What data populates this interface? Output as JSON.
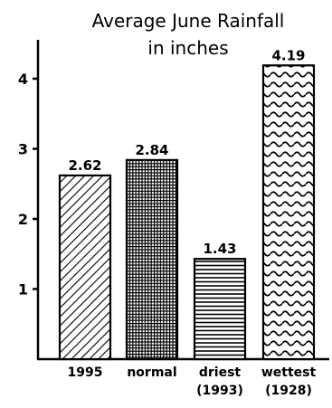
{
  "chart_data": {
    "type": "bar",
    "title_lines": [
      "Average June Rainfall",
      "in inches"
    ],
    "categories": [
      [
        "1995"
      ],
      [
        "normal"
      ],
      [
        "driest",
        "(1993)"
      ],
      [
        "wettest",
        "(1928)"
      ]
    ],
    "values": [
      2.62,
      2.84,
      1.43,
      4.19
    ],
    "value_labels": [
      "2.62",
      "2.84",
      "1.43",
      "4.19"
    ],
    "patterns": [
      "diagonal-hatch",
      "crosshatch-grid",
      "horizontal-lines",
      "wave"
    ],
    "ylim": [
      0,
      4.4
    ],
    "yticks": [
      1,
      2,
      3,
      4
    ],
    "ytick_labels": [
      "1",
      "2",
      "3",
      "4"
    ],
    "grid": false,
    "legend": "none",
    "colors": {
      "ink": "#000000",
      "background": "#ffffff"
    }
  }
}
